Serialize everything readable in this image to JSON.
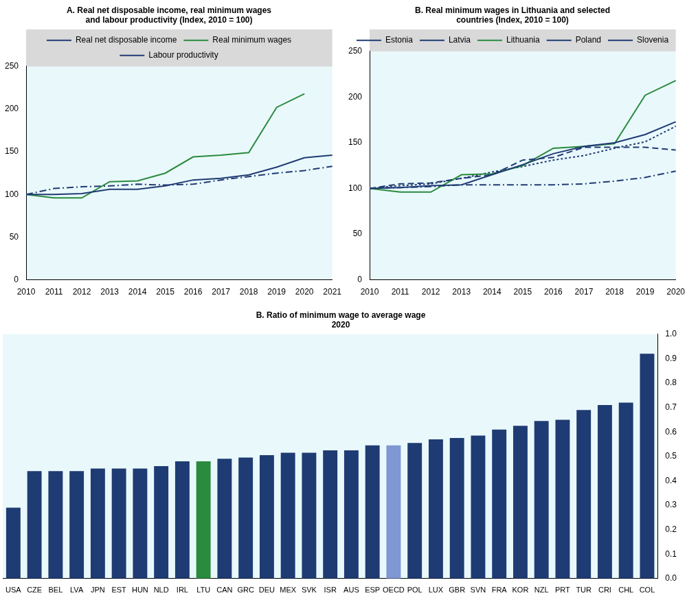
{
  "chart_data": [
    {
      "type": "line",
      "title": [
        "A. Real net disposable income, real minimum wages",
        "and labour productivity (Index, 2010 = 100)"
      ],
      "categories": [
        "2010",
        "2011",
        "2012",
        "2013",
        "2014",
        "2015",
        "2016",
        "2017",
        "2018",
        "2019",
        "2020",
        "2021"
      ],
      "series": [
        {
          "name": "Real net disposable income",
          "color": "#1f3b73",
          "line_style": "solid",
          "values": [
            100,
            100,
            101,
            106,
            106,
            110,
            117,
            119,
            123,
            132,
            143,
            146
          ]
        },
        {
          "name": "Real minimum wages",
          "color": "#2a8a3e",
          "line_style": "solid",
          "values": [
            100,
            96,
            96,
            115,
            116,
            125,
            144,
            146,
            149,
            202,
            218,
            null
          ]
        },
        {
          "name": "Labour productivity",
          "color": "#1f3b73",
          "line_style": "dashdot",
          "values": [
            100,
            107,
            109,
            110,
            112,
            111,
            112,
            117,
            121,
            125,
            128,
            133
          ]
        }
      ],
      "ylim": [
        0,
        250
      ],
      "yticks": [
        0,
        50,
        100,
        150,
        200,
        250
      ],
      "grid": false,
      "legend": "top"
    },
    {
      "type": "line",
      "title": [
        "B. Real minimum wages in Lithuania and selected",
        "countries (Index, 2010 = 100)"
      ],
      "categories": [
        "2010",
        "2011",
        "2012",
        "2013",
        "2014",
        "2015",
        "2016",
        "2017",
        "2018",
        "2019",
        "2020"
      ],
      "series": [
        {
          "name": "Estonia",
          "color": "#1f3b73",
          "line_style": "solid",
          "values": [
            100,
            101,
            103,
            104,
            115,
            126,
            138,
            146,
            150,
            159,
            173
          ]
        },
        {
          "name": "Latvia",
          "color": "#1f3b73",
          "line_style": "dashed",
          "values": [
            100,
            105,
            106,
            111,
            115,
            131,
            134,
            145,
            145,
            145,
            142
          ]
        },
        {
          "name": "Lithuania",
          "color": "#2a8a3e",
          "line_style": "solid",
          "values": [
            100,
            96,
            96,
            115,
            116,
            125,
            144,
            146,
            149,
            202,
            218
          ]
        },
        {
          "name": "Poland",
          "color": "#1f3b73",
          "line_style": "dotted",
          "values": [
            100,
            103,
            105,
            111,
            118,
            124,
            131,
            136,
            144,
            151,
            168
          ]
        },
        {
          "name": "Slovenia",
          "color": "#1f3b73",
          "line_style": "dashdot",
          "values": [
            100,
            101,
            102,
            104,
            104,
            104,
            104,
            105,
            108,
            112,
            119
          ]
        }
      ],
      "ylim": [
        0,
        250
      ],
      "yticks": [
        0,
        50,
        100,
        150,
        200,
        250
      ],
      "grid": false,
      "legend": "top"
    },
    {
      "type": "bar",
      "title": [
        "B. Ratio of minimum wage to average wage",
        "2020"
      ],
      "categories": [
        "USA",
        "CZE",
        "BEL",
        "LVA",
        "JPN",
        "EST",
        "HUN",
        "NLD",
        "IRL",
        "LTU",
        "CAN",
        "GRC",
        "DEU",
        "MEX",
        "SVK",
        "ISR",
        "AUS",
        "ESP",
        "OECD",
        "POL",
        "LUX",
        "GBR",
        "SVN",
        "FRA",
        "KOR",
        "NZL",
        "PRT",
        "TUR",
        "CRI",
        "CHL",
        "COL"
      ],
      "values": [
        0.29,
        0.44,
        0.44,
        0.44,
        0.45,
        0.45,
        0.45,
        0.46,
        0.48,
        0.48,
        0.49,
        0.495,
        0.505,
        0.515,
        0.515,
        0.525,
        0.525,
        0.545,
        0.545,
        0.555,
        0.57,
        0.575,
        0.585,
        0.61,
        0.625,
        0.645,
        0.65,
        0.69,
        0.71,
        0.72,
        0.92
      ],
      "colors": [
        "#1f3b73",
        "#1f3b73",
        "#1f3b73",
        "#1f3b73",
        "#1f3b73",
        "#1f3b73",
        "#1f3b73",
        "#1f3b73",
        "#1f3b73",
        "#2a8a3e",
        "#1f3b73",
        "#1f3b73",
        "#1f3b73",
        "#1f3b73",
        "#1f3b73",
        "#1f3b73",
        "#1f3b73",
        "#1f3b73",
        "#7f97d3",
        "#1f3b73",
        "#1f3b73",
        "#1f3b73",
        "#1f3b73",
        "#1f3b73",
        "#1f3b73",
        "#1f3b73",
        "#1f3b73",
        "#1f3b73",
        "#1f3b73",
        "#1f3b73",
        "#1f3b73"
      ],
      "ylim": [
        0,
        1
      ],
      "yticks": [
        {
          "value": 0,
          "label": "0.0"
        },
        0.1,
        0.2,
        0.3,
        0.4,
        0.5,
        0.6,
        0.7,
        0.8,
        0.9,
        {
          "value": 1,
          "label": "1.0"
        }
      ],
      "grid": false
    }
  ]
}
